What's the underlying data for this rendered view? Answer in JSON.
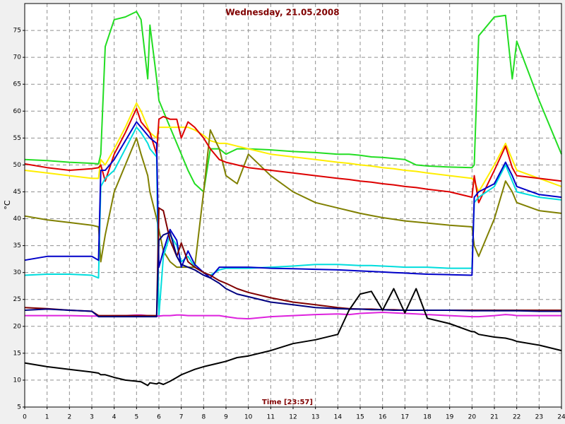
{
  "chart_data": {
    "type": "line",
    "title": "Wednesday, 21.05.2008",
    "x_label": "Time [23:57]",
    "y_label": "°C",
    "grid": true,
    "xlim": [
      0,
      24
    ],
    "xticks": [
      0,
      1,
      2,
      3,
      4,
      5,
      6,
      7,
      8,
      9,
      10,
      11,
      12,
      13,
      14,
      15,
      16,
      17,
      18,
      19,
      20,
      21,
      22,
      23,
      24
    ],
    "ylim": [
      5,
      80
    ],
    "yticks": [
      5,
      10,
      15,
      20,
      25,
      30,
      35,
      40,
      45,
      50,
      55,
      60,
      65,
      70,
      75
    ],
    "x": [
      0,
      1,
      2,
      3,
      3.3,
      3.4,
      3.6,
      4,
      4.5,
      5,
      5.2,
      5.5,
      5.6,
      5.9,
      6,
      6.2,
      6.5,
      6.8,
      7,
      7.3,
      7.6,
      8,
      8.3,
      8.7,
      9,
      9.5,
      10,
      11,
      12,
      13,
      14,
      14.5,
      15,
      15.5,
      16,
      16.5,
      17,
      17.5,
      18,
      19,
      20,
      20.1,
      20.3,
      21,
      21.5,
      21.8,
      22,
      23,
      24
    ],
    "series": [
      {
        "color": "#22dd22",
        "values": [
          51,
          50.8,
          50.5,
          50.3,
          50.2,
          52,
          72,
          77,
          77.5,
          78.5,
          77,
          66,
          76,
          66,
          62,
          60,
          57,
          54,
          52,
          49,
          46.5,
          45,
          53,
          53,
          52,
          53,
          53,
          52.8,
          52.5,
          52.3,
          52,
          52,
          51.8,
          51.5,
          51.4,
          51.2,
          51,
          50,
          49.8,
          49.6,
          49.5,
          50,
          74,
          77.5,
          77.8,
          66,
          73,
          62,
          52
        ]
      },
      {
        "color": "#ffee00",
        "values": [
          49,
          48.5,
          48,
          47.5,
          47.5,
          51,
          50,
          53,
          57,
          61.5,
          60,
          57,
          56,
          55,
          57,
          57,
          57,
          57,
          57,
          57,
          56.5,
          55.5,
          54.5,
          54,
          54,
          53.5,
          53,
          52,
          51.5,
          51,
          50.5,
          50.3,
          50,
          49.8,
          49.5,
          49.3,
          49,
          48.8,
          48.5,
          48,
          47.5,
          47,
          45,
          50,
          54,
          51,
          49,
          47.5,
          46
        ]
      },
      {
        "color": "#808000",
        "values": [
          40.5,
          39.8,
          39.3,
          38.8,
          38.5,
          32,
          37,
          45,
          50,
          55,
          52,
          48,
          45,
          40,
          38,
          34,
          32,
          31,
          31,
          31,
          31,
          45,
          56.5,
          53,
          48,
          46.5,
          52,
          48,
          45,
          43,
          42,
          41.5,
          41,
          40.6,
          40.2,
          39.9,
          39.6,
          39.4,
          39.2,
          38.8,
          38.5,
          35,
          33,
          40,
          47,
          45,
          43,
          41.5,
          41
        ]
      },
      {
        "color": "#dd0000",
        "values": [
          50.2,
          49.5,
          49,
          49.3,
          49.5,
          50,
          47,
          52,
          56,
          60.5,
          58,
          56.5,
          56,
          52,
          58.5,
          59,
          58.5,
          58.5,
          55,
          58,
          57,
          55,
          53,
          51,
          50.5,
          50,
          49.5,
          49,
          48.5,
          48,
          47.5,
          47.3,
          47,
          46.8,
          46.5,
          46.3,
          46,
          45.8,
          45.5,
          45,
          44,
          48,
          43,
          49,
          53.5,
          49.5,
          48,
          47.5,
          47
        ]
      },
      {
        "color": "#00dddd",
        "values": [
          29.5,
          29.7,
          29.7,
          29.5,
          29,
          46,
          47.5,
          49,
          53,
          57,
          56,
          54,
          53,
          51.5,
          22,
          33,
          37,
          35,
          32,
          33,
          31,
          30,
          29.5,
          30.5,
          30.8,
          30.8,
          30.8,
          31,
          31.2,
          31.5,
          31.5,
          31.4,
          31.3,
          31.3,
          31.2,
          31.1,
          31,
          31,
          31,
          30.8,
          30.8,
          43,
          44,
          46,
          50,
          47,
          45,
          44,
          43.5
        ]
      },
      {
        "color": "#0000c8",
        "values": [
          32.3,
          33,
          33,
          33,
          32.3,
          49,
          49,
          51,
          54.5,
          58,
          57,
          55.5,
          55,
          54,
          31,
          34,
          38,
          36,
          31,
          34,
          31.5,
          30,
          29,
          31,
          31,
          31,
          31,
          30.8,
          30.7,
          30.6,
          30.5,
          30.4,
          30.3,
          30.2,
          30.1,
          30,
          29.9,
          29.8,
          29.7,
          29.6,
          29.5,
          44,
          45,
          46.5,
          50.5,
          48,
          46,
          44.5,
          44
        ]
      },
      {
        "color": "#dd22dd",
        "values": [
          22,
          22,
          22,
          21.9,
          21.9,
          21.9,
          21.9,
          22,
          22,
          22.1,
          22.1,
          22,
          22,
          21.9,
          21.9,
          22,
          22,
          22.1,
          22.1,
          22,
          22,
          22,
          22,
          22,
          21.8,
          21.5,
          21.4,
          21.8,
          22,
          22.2,
          22.3,
          22.2,
          22.4,
          22.5,
          22.6,
          22.5,
          22.4,
          22.3,
          22.2,
          22,
          21.8,
          21.8,
          21.8,
          22,
          22.2,
          22.1,
          22,
          22,
          22
        ]
      },
      {
        "color": "#800000",
        "values": [
          23.5,
          23.3,
          23,
          22.8,
          22,
          22,
          22,
          22,
          22,
          22,
          22,
          22,
          22,
          22,
          42,
          41.5,
          36,
          33,
          35.5,
          32,
          31,
          30,
          29.5,
          28.5,
          28,
          27,
          26.3,
          25.3,
          24.5,
          24,
          23.5,
          23.3,
          23.2,
          23.2,
          23.1,
          23.1,
          23,
          23,
          23,
          23,
          23,
          23,
          23,
          23,
          23,
          23,
          23,
          23,
          23
        ]
      },
      {
        "color": "#000080",
        "values": [
          23,
          23.2,
          23,
          22.8,
          21.8,
          21.8,
          21.8,
          21.8,
          21.8,
          21.8,
          21.8,
          21.8,
          21.8,
          21.8,
          36,
          37,
          37.5,
          33,
          31.5,
          31,
          30.5,
          29.5,
          29,
          28,
          27,
          26,
          25.5,
          24.5,
          24,
          23.5,
          23.3,
          23.2,
          23.2,
          23.1,
          23.1,
          23,
          23,
          23,
          23,
          23,
          22.9,
          22.9,
          22.9,
          22.9,
          22.9,
          22.9,
          22.9,
          22.8,
          22.8
        ]
      },
      {
        "color": "#000000",
        "values": [
          13.2,
          12.5,
          12,
          11.5,
          11.3,
          11,
          11,
          10.5,
          10,
          9.8,
          9.7,
          9,
          9.5,
          9.3,
          9.5,
          9.2,
          9.8,
          10.5,
          11,
          11.5,
          12,
          12.5,
          12.8,
          13.2,
          13.5,
          14.2,
          14.5,
          15.5,
          16.8,
          17.5,
          18.5,
          23,
          26,
          26.5,
          23,
          27,
          22.5,
          27,
          21.5,
          20.5,
          19,
          19,
          18.5,
          18,
          17.8,
          17.5,
          17.2,
          16.5,
          15.5
        ]
      }
    ]
  }
}
